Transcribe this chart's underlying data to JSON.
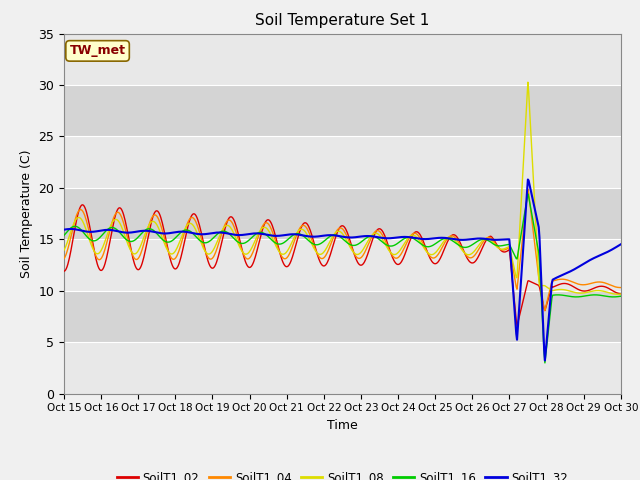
{
  "title": "Soil Temperature Set 1",
  "xlabel": "Time",
  "ylabel": "Soil Temperature (C)",
  "ylim": [
    0,
    35
  ],
  "xlim": [
    0,
    15
  ],
  "series": {
    "SoilT1_02": {
      "color": "#dd0000",
      "linewidth": 1.0
    },
    "SoilT1_04": {
      "color": "#ff8800",
      "linewidth": 1.0
    },
    "SoilT1_08": {
      "color": "#dddd00",
      "linewidth": 1.0
    },
    "SoilT1_16": {
      "color": "#00cc00",
      "linewidth": 1.0
    },
    "SoilT1_32": {
      "color": "#0000dd",
      "linewidth": 1.5
    }
  },
  "annotation": {
    "text": "TW_met",
    "fontsize": 9,
    "color": "#880000",
    "bbox_facecolor": "#ffffcc",
    "bbox_edgecolor": "#886600"
  },
  "xtick_labels": [
    "Oct 15",
    "Oct 16",
    "Oct 17",
    "Oct 18",
    "Oct 19",
    "Oct 20",
    "Oct 21",
    "Oct 22",
    "Oct 23",
    "Oct 24",
    "Oct 25",
    "Oct 26",
    "Oct 27",
    "Oct 28",
    "Oct 29",
    "Oct 30"
  ],
  "grid_colors": [
    "#e8e8e8",
    "#d4d4d4"
  ],
  "fig_facecolor": "#f0f0f0"
}
